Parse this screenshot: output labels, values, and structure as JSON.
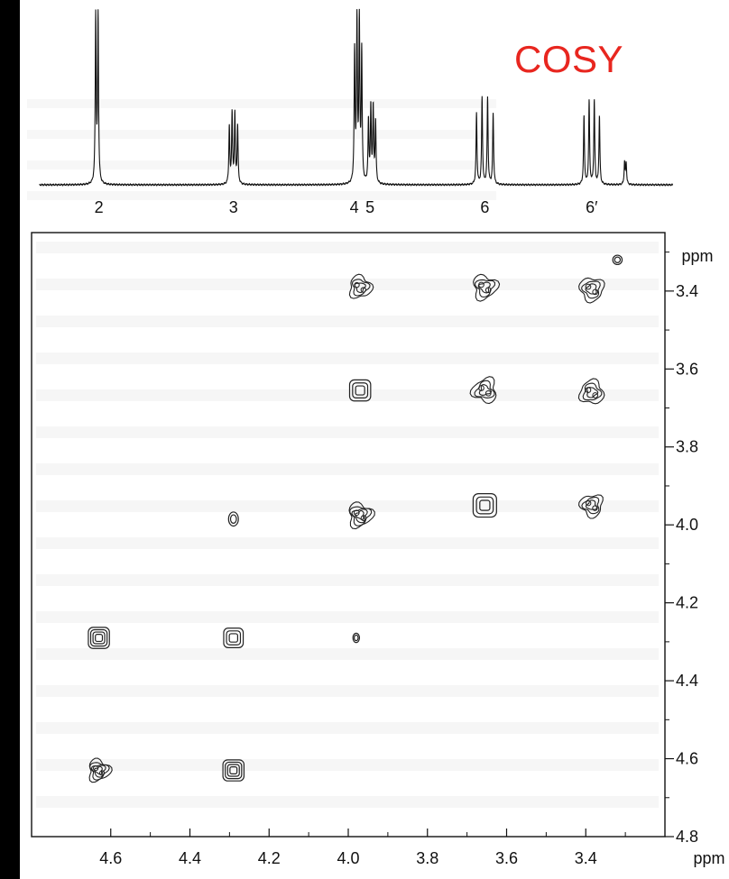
{
  "title": "COSY",
  "colors": {
    "background": "#ffffff",
    "frame": "#000000",
    "title": "#e8261f",
    "contour": "#222222"
  },
  "chart_data": {
    "type": "heatmap",
    "subtype": "2d-nmr-contour",
    "title": "COSY",
    "x_axis": {
      "label": "ppm",
      "range": [
        4.8,
        3.2
      ],
      "reversed": true,
      "ticks": [
        4.6,
        4.4,
        4.2,
        4.0,
        3.8,
        3.6,
        3.4
      ],
      "tick_labels": [
        "4.6",
        "4.4",
        "4.2",
        "4.0",
        "3.8",
        "3.6",
        "3.4"
      ]
    },
    "y_axis": {
      "label": "ppm",
      "range": [
        3.25,
        4.8
      ],
      "reversed": true,
      "position": "right",
      "ticks": [
        3.4,
        3.6,
        3.8,
        4.0,
        4.2,
        4.4,
        4.6,
        4.8
      ],
      "tick_labels": [
        "3.4",
        "3.6",
        "3.8",
        "4.0",
        "4.2",
        "4.4",
        "4.6",
        "4.8"
      ]
    },
    "projection_labels": [
      {
        "label": "2",
        "ppm": 4.63
      },
      {
        "label": "3",
        "ppm": 4.29
      },
      {
        "label": "4",
        "ppm": 3.985
      },
      {
        "label": "5",
        "ppm": 3.945
      },
      {
        "label": "6",
        "ppm": 3.655
      },
      {
        "label": "6′",
        "ppm": 3.385
      }
    ],
    "projection_peaks": [
      {
        "ppm": 4.635,
        "height": 1.0,
        "lines": 2,
        "spacing": 0.006
      },
      {
        "ppm": 4.29,
        "height": 0.42,
        "lines": 4,
        "spacing": 0.007
      },
      {
        "ppm": 3.975,
        "height": 0.95,
        "lines": 4,
        "spacing": 0.006
      },
      {
        "ppm": 3.94,
        "height": 0.45,
        "lines": 4,
        "spacing": 0.006
      },
      {
        "ppm": 3.655,
        "height": 0.52,
        "lines": 4,
        "spacing": 0.014
      },
      {
        "ppm": 3.385,
        "height": 0.5,
        "lines": 4,
        "spacing": 0.013
      },
      {
        "ppm": 3.3,
        "height": 0.13,
        "lines": 2,
        "spacing": 0.004
      }
    ],
    "cross_peaks": [
      {
        "x": 3.32,
        "y": 3.32,
        "r": 0.012,
        "rings": 2,
        "shape": "circle"
      },
      {
        "x": 3.97,
        "y": 3.39,
        "r": 0.028,
        "rings": 3,
        "shape": "blob"
      },
      {
        "x": 3.655,
        "y": 3.39,
        "r": 0.03,
        "rings": 3,
        "shape": "blob"
      },
      {
        "x": 3.385,
        "y": 3.395,
        "r": 0.03,
        "rings": 3,
        "shape": "blob"
      },
      {
        "x": 3.97,
        "y": 3.655,
        "r": 0.027,
        "rings": 3,
        "shape": "square"
      },
      {
        "x": 3.655,
        "y": 3.655,
        "r": 0.03,
        "rings": 3,
        "shape": "blob"
      },
      {
        "x": 3.385,
        "y": 3.66,
        "r": 0.03,
        "rings": 3,
        "shape": "blob"
      },
      {
        "x": 4.29,
        "y": 3.985,
        "r": 0.018,
        "rings": 2,
        "shape": "oval"
      },
      {
        "x": 3.97,
        "y": 3.975,
        "r": 0.03,
        "rings": 4,
        "shape": "blob"
      },
      {
        "x": 3.655,
        "y": 3.95,
        "r": 0.03,
        "rings": 3,
        "shape": "square"
      },
      {
        "x": 3.385,
        "y": 3.95,
        "r": 0.028,
        "rings": 3,
        "shape": "blob"
      },
      {
        "x": 4.63,
        "y": 4.29,
        "r": 0.027,
        "rings": 4,
        "shape": "square"
      },
      {
        "x": 4.29,
        "y": 4.29,
        "r": 0.025,
        "rings": 3,
        "shape": "square"
      },
      {
        "x": 3.98,
        "y": 4.29,
        "r": 0.012,
        "rings": 2,
        "shape": "oval"
      },
      {
        "x": 4.63,
        "y": 4.63,
        "r": 0.027,
        "rings": 4,
        "shape": "blob"
      },
      {
        "x": 4.29,
        "y": 4.63,
        "r": 0.027,
        "rings": 4,
        "shape": "square"
      }
    ]
  }
}
